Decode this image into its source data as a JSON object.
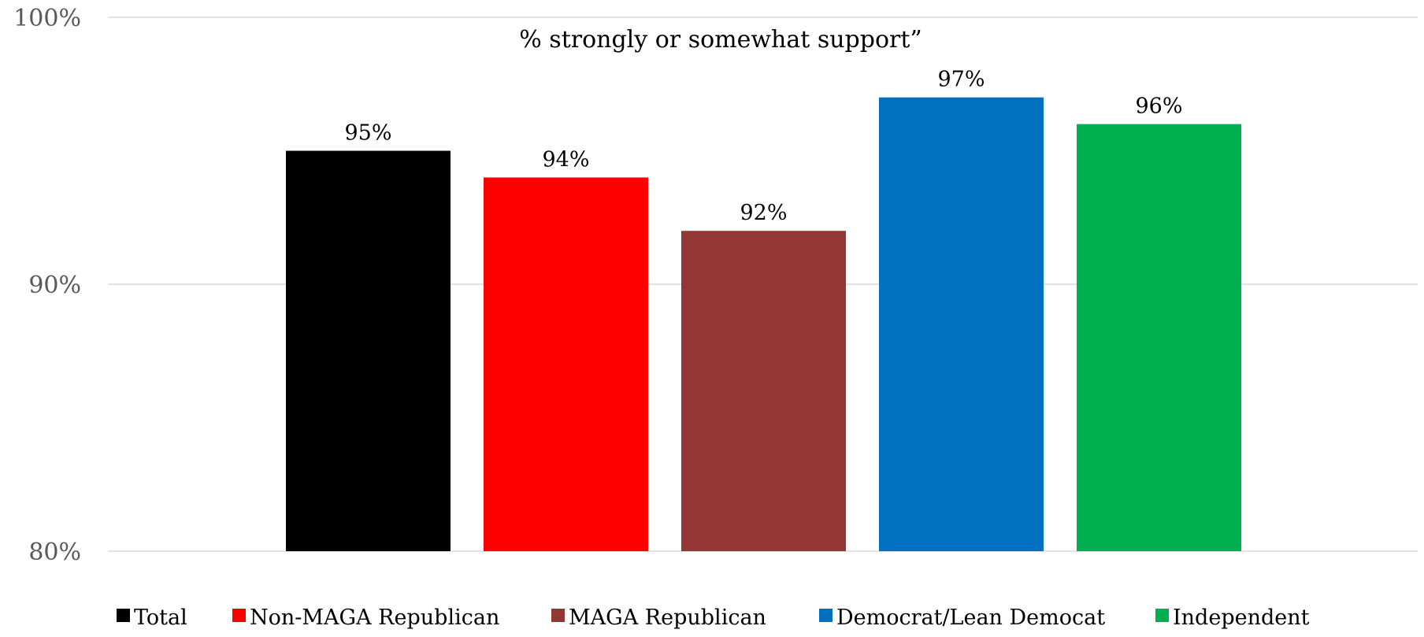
{
  "chart_data": {
    "type": "bar",
    "title": "% strongly or somewhat support”",
    "categories": [
      "Total",
      "Non-MAGA Republican",
      "MAGA Republican",
      "Democrat/Lean Democat",
      "Independent"
    ],
    "values": [
      95,
      94,
      92,
      97,
      96
    ],
    "data_labels": [
      "95%",
      "94%",
      "92%",
      "97%",
      "96%"
    ],
    "colors": [
      "#000000",
      "#ff0000",
      "#943634",
      "#0070c0",
      "#00b050"
    ],
    "ylim": [
      80,
      100
    ],
    "yticks": [
      80,
      90,
      100
    ],
    "ytick_labels": [
      "80%",
      "90%",
      "100%"
    ],
    "grid": true,
    "legend": {
      "position": "bottom",
      "entries": [
        "Total",
        "Non-MAGA Republican",
        "MAGA Republican",
        "Democrat/Lean Democat",
        "Independent"
      ]
    },
    "xlabel": "",
    "ylabel": ""
  }
}
